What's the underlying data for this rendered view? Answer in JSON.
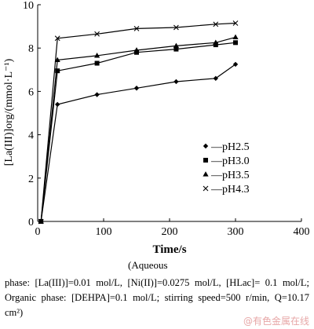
{
  "chart_data": {
    "type": "line",
    "xlabel": "Time/s",
    "ylabel": "[La(III)]org/(mmol·L⁻¹)",
    "xlim": [
      0,
      400
    ],
    "ylim": [
      0,
      10
    ],
    "x_ticks": [
      "0",
      "100",
      "200",
      "300",
      "400"
    ],
    "y_ticks": [
      "0",
      "2",
      "4",
      "6",
      "8",
      "10"
    ],
    "grid": false,
    "legend_position": "lower-right",
    "series": [
      {
        "name": "pH2.5",
        "marker": "diamond",
        "x": [
          5,
          30,
          90,
          150,
          210,
          270,
          300
        ],
        "y": [
          0,
          5.4,
          5.85,
          6.15,
          6.45,
          6.6,
          7.25
        ]
      },
      {
        "name": "pH3.0",
        "marker": "square",
        "x": [
          5,
          30,
          90,
          150,
          210,
          270,
          300
        ],
        "y": [
          0,
          6.95,
          7.3,
          7.8,
          7.95,
          8.15,
          8.25
        ]
      },
      {
        "name": "pH3.5",
        "marker": "triangle",
        "x": [
          5,
          30,
          90,
          150,
          210,
          270,
          300
        ],
        "y": [
          0,
          7.45,
          7.65,
          7.9,
          8.1,
          8.25,
          8.5
        ]
      },
      {
        "name": "pH4.3",
        "marker": "x",
        "x": [
          5,
          30,
          90,
          150,
          210,
          270,
          300
        ],
        "y": [
          0,
          8.45,
          8.65,
          8.9,
          8.95,
          9.1,
          9.15
        ]
      }
    ],
    "legend_dash": "—"
  },
  "caption": {
    "opening": "(Aqueous",
    "text": "phase: [La(III)]=0.01 mol/L, [Ni(II)]=0.0275 mol/L, [HLac]= 0.1 mol/L; Organic phase: [DEHPA]=0.1 mol/L; stirring speed=500 r/min, Q=10.17 cm²)"
  },
  "watermark": "@有色金属在线"
}
